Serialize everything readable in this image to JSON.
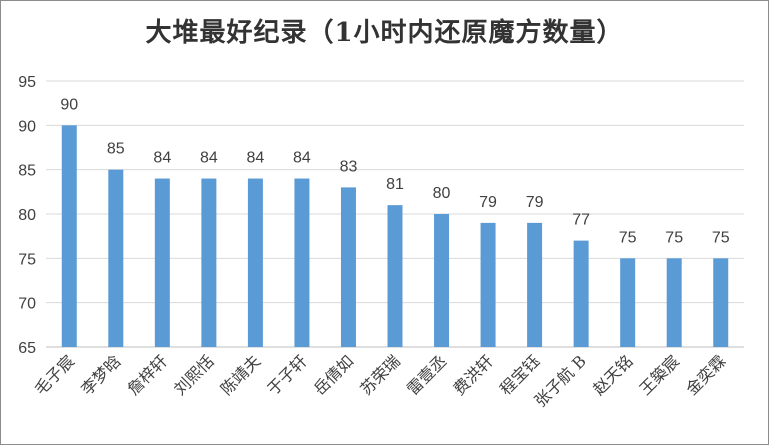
{
  "chart_data": {
    "type": "bar",
    "title": "大堆最好纪录（1小时内还原魔方数量）",
    "categories": [
      "毛子宸",
      "李梦晗",
      "詹梓轩",
      "刘熙恬",
      "陈靖夫",
      "于子轩",
      "岳倩如",
      "苏荣瑞",
      "雷壹丞",
      "费洪轩",
      "程宝钰",
      "张子航 B",
      "赵天铭",
      "王築宸",
      "金奕霖"
    ],
    "values": [
      90,
      85,
      84,
      84,
      84,
      84,
      83,
      81,
      80,
      79,
      79,
      77,
      75,
      75,
      75
    ],
    "ylim": [
      65,
      95
    ],
    "yticks": [
      65,
      70,
      75,
      80,
      85,
      90,
      95
    ],
    "grid": true,
    "bar_color": "#5b9bd5",
    "grid_color": "#d9d9d9",
    "text_color": "#404040"
  }
}
